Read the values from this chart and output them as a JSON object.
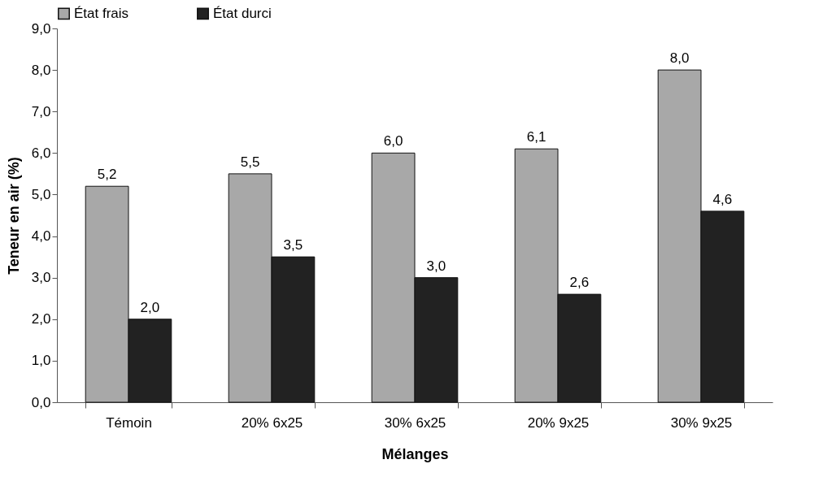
{
  "chart_data": {
    "type": "bar",
    "xlabel": "Mélanges",
    "ylabel": "Teneur en air (%)",
    "categories": [
      "Témoin",
      "20% 6x25",
      "30% 6x25",
      "20% 9x25",
      "30% 9x25"
    ],
    "series": [
      {
        "name": "État frais",
        "color": "#a8a8a8",
        "values": [
          5.2,
          5.5,
          6.0,
          6.1,
          8.0
        ],
        "value_labels": [
          "5,2",
          "5,5",
          "6,0",
          "6,1",
          "8,0"
        ]
      },
      {
        "name": "État durci",
        "color": "#222222",
        "values": [
          2.0,
          3.5,
          3.0,
          2.6,
          4.6
        ],
        "value_labels": [
          "2,0",
          "3,5",
          "3,0",
          "2,6",
          "4,6"
        ]
      }
    ],
    "ylim": [
      0,
      9
    ],
    "yticks": [
      {
        "value": 0,
        "label": "0,0"
      },
      {
        "value": 1,
        "label": "1,0"
      },
      {
        "value": 2,
        "label": "2,0"
      },
      {
        "value": 3,
        "label": "3,0"
      },
      {
        "value": 4,
        "label": "4,0"
      },
      {
        "value": 5,
        "label": "5,0"
      },
      {
        "value": 6,
        "label": "6,0"
      },
      {
        "value": 7,
        "label": "7,0"
      },
      {
        "value": 8,
        "label": "8,0"
      },
      {
        "value": 9,
        "label": "9,0"
      }
    ],
    "legend": "top",
    "grid": false
  }
}
